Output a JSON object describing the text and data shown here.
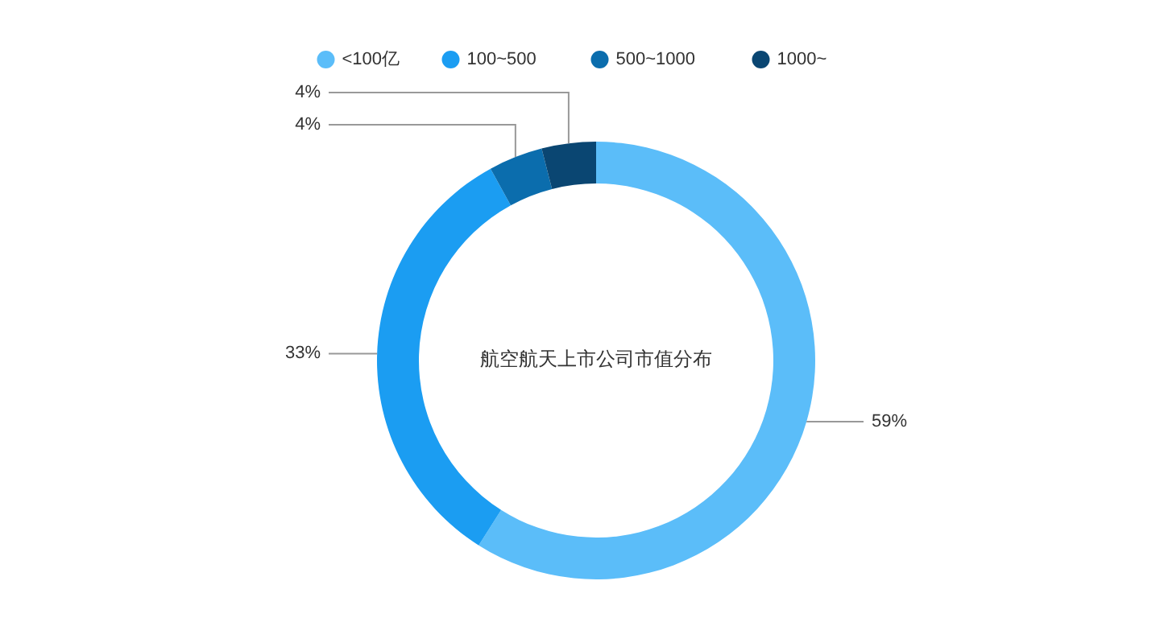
{
  "chart_data": {
    "type": "donut",
    "title": "航空航天上市公司市值分布",
    "categories": [
      "<100亿",
      "100~500",
      "500~1000",
      "1000~"
    ],
    "values": [
      59,
      33,
      4,
      4
    ],
    "colors": [
      "#5bbdf9",
      "#1b9df2",
      "#0b6dad",
      "#0a4672"
    ],
    "value_labels": [
      "59%",
      "33%",
      "4%",
      "4%"
    ],
    "legend": "top"
  }
}
